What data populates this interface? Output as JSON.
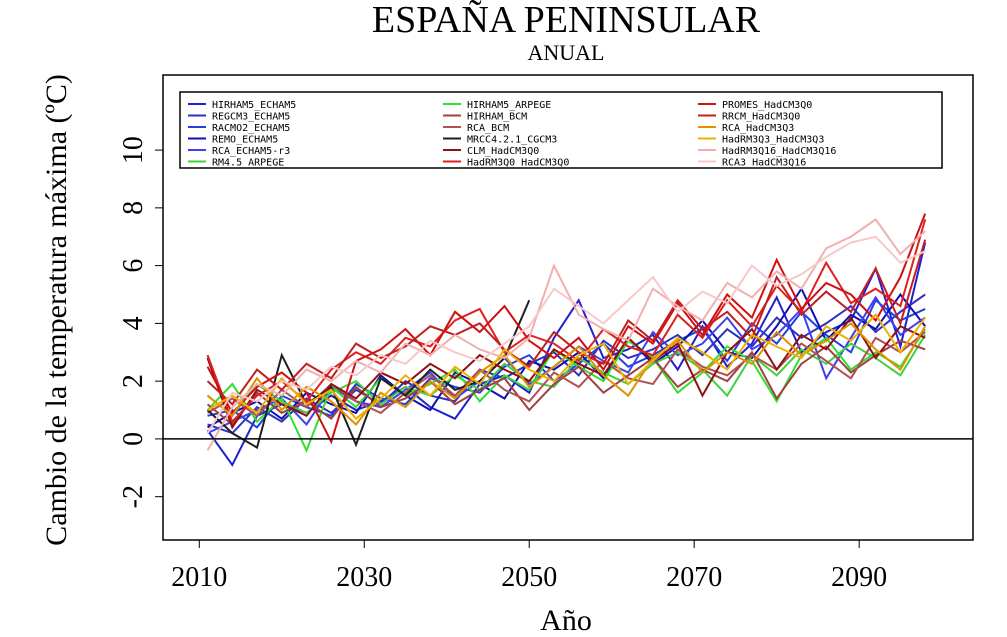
{
  "chart_data": {
    "type": "line",
    "title": "ESPAÑA PENINSULAR",
    "subtitle": "ANUAL",
    "x_label": "Año",
    "y_label": "Cambio de la temperatura máxima (ºC)",
    "xlim": [
      2005.6,
      2103.8
    ],
    "xticks": [
      2010,
      2030,
      2050,
      2070,
      2090
    ],
    "ylim": [
      -3.5,
      12.6
    ],
    "yticks": [
      -2,
      0,
      2,
      4,
      6,
      8,
      10
    ],
    "hline": 0,
    "legend": "top",
    "x": [
      2011,
      2014,
      2017,
      2020,
      2023,
      2026,
      2029,
      2032,
      2035,
      2038,
      2041,
      2044,
      2047,
      2050,
      2053,
      2056,
      2059,
      2062,
      2065,
      2068,
      2071,
      2074,
      2077,
      2080,
      2083,
      2086,
      2089,
      2092,
      2095,
      2098
    ],
    "series": [
      {
        "name": "HIRHAM5_ECHAM5",
        "color": "#2020d0",
        "values": [
          0.3,
          -0.9,
          0.8,
          1.2,
          0.9,
          1.5,
          1.0,
          1.3,
          1.8,
          1.1,
          0.7,
          1.9,
          2.2,
          1.6,
          3.5,
          4.8,
          2.8,
          3.1,
          3.6,
          2.4,
          3.9,
          2.5,
          3.3,
          4.9,
          3.0,
          3.7,
          4.1,
          5.9,
          3.2,
          6.8
        ]
      },
      {
        "name": "REGCM3_ECHAM5",
        "color": "#3030c0",
        "values": [
          0.5,
          0.2,
          1.1,
          0.6,
          1.4,
          0.9,
          1.7,
          1.2,
          2.0,
          1.5,
          1.3,
          2.4,
          2.1,
          2.6,
          3.0,
          2.2,
          3.4,
          2.8,
          3.1,
          3.6,
          2.9,
          3.8,
          3.2,
          4.2,
          3.5,
          4.0,
          4.6,
          3.7,
          4.4,
          5.0
        ]
      },
      {
        "name": "RACMO2_ECHAM5",
        "color": "#2040e0",
        "values": [
          0.8,
          1.0,
          0.4,
          1.5,
          1.1,
          0.8,
          1.9,
          1.4,
          1.2,
          2.1,
          1.8,
          1.6,
          2.5,
          2.9,
          2.0,
          2.6,
          3.3,
          2.5,
          2.9,
          3.4,
          3.8,
          2.7,
          4.0,
          3.3,
          4.4,
          3.6,
          3.0,
          4.8,
          4.1,
          4.5
        ]
      },
      {
        "name": "REMO_ECHAM5",
        "color": "#1010b0",
        "values": [
          0.4,
          0.9,
          1.3,
          0.7,
          1.6,
          1.2,
          0.9,
          2.2,
          1.5,
          1.0,
          2.3,
          1.9,
          1.4,
          2.7,
          2.4,
          3.0,
          2.1,
          3.5,
          2.6,
          3.2,
          4.1,
          3.0,
          2.8,
          3.9,
          5.2,
          3.4,
          4.3,
          3.8,
          5.0,
          3.9
        ]
      },
      {
        "name": "RCA_ECHAM5-r3",
        "color": "#4040f0",
        "values": [
          0.2,
          0.6,
          1.0,
          1.4,
          0.5,
          1.8,
          1.3,
          1.1,
          1.7,
          2.3,
          1.4,
          2.0,
          2.8,
          1.9,
          2.5,
          3.2,
          2.7,
          2.3,
          3.7,
          2.9,
          3.3,
          4.2,
          3.1,
          3.6,
          4.5,
          2.1,
          3.5,
          4.9,
          3.6,
          4.2
        ]
      },
      {
        "name": "RM4.5_ARPEGE",
        "color": "#40d040",
        "values": [
          1.5,
          0.8,
          1.9,
          1.3,
          0.9,
          1.6,
          2.0,
          1.2,
          1.8,
          1.5,
          2.2,
          1.7,
          2.6,
          2.0,
          1.8,
          2.8,
          2.3,
          1.9,
          2.6,
          3.0,
          2.4,
          1.5,
          2.9,
          2.2,
          3.1,
          2.6,
          3.3,
          2.8,
          2.2,
          3.6
        ]
      },
      {
        "name": "HIRHAM5_ARPEGE",
        "color": "#30e030",
        "values": [
          1.0,
          1.9,
          0.6,
          1.4,
          -0.4,
          1.8,
          1.1,
          2.1,
          1.5,
          1.9,
          2.4,
          1.3,
          2.2,
          1.7,
          3.1,
          2.5,
          2.0,
          3.4,
          2.8,
          1.6,
          2.3,
          3.2,
          2.7,
          1.3,
          2.9,
          3.5,
          2.4,
          3.0,
          2.5,
          3.8
        ]
      },
      {
        "name": "HIRHAM_BCM",
        "color": "#a04040",
        "values": [
          1.2,
          0.5,
          1.6,
          0.9,
          1.3,
          0.7,
          1.8,
          1.1,
          1.4,
          2.0,
          1.2,
          1.7,
          2.1,
          1.0,
          1.9,
          2.5,
          1.6,
          2.2,
          2.8,
          1.8,
          2.4,
          2.0,
          3.0,
          1.4,
          2.6,
          3.2,
          2.3,
          2.9,
          3.4,
          3.1
        ]
      },
      {
        "name": "RCA_BCM",
        "color": "#b05050",
        "values": [
          0.9,
          1.4,
          0.8,
          1.7,
          1.1,
          1.9,
          1.3,
          0.9,
          1.6,
          2.2,
          1.5,
          2.4,
          1.7,
          1.3,
          2.3,
          1.8,
          2.7,
          2.1,
          1.9,
          3.1,
          2.5,
          2.2,
          2.9,
          2.4,
          3.3,
          2.7,
          2.1,
          3.5,
          3.0,
          3.7
        ]
      },
      {
        "name": "MRCC4.2.1_CGCM3",
        "color": "#202020",
        "values": [
          1.0,
          0.2,
          -0.3,
          2.9,
          1.2,
          1.8,
          -0.2,
          2.1,
          1.5,
          2.4,
          1.7,
          2.0,
          2.8,
          4.8,
          null,
          null,
          null,
          null,
          null,
          null,
          null,
          null,
          null,
          null,
          null,
          null,
          null,
          null,
          null,
          null
        ]
      },
      {
        "name": "CLM_HadCM3Q0",
        "color": "#901010",
        "values": [
          2.8,
          0.4,
          1.7,
          1.2,
          0.8,
          1.9,
          1.4,
          2.3,
          1.9,
          2.6,
          2.1,
          2.9,
          2.4,
          2.0,
          3.1,
          2.6,
          2.2,
          3.5,
          2.7,
          3.3,
          1.5,
          3.0,
          3.8,
          2.4,
          3.6,
          3.1,
          4.2,
          2.8,
          3.9,
          3.5
        ]
      },
      {
        "name": "HadRM3Q0_HadCM3Q0",
        "color": "#e02020",
        "values": [
          2.9,
          0.6,
          1.5,
          2.0,
          1.3,
          2.4,
          3.0,
          2.6,
          3.5,
          3.2,
          4.1,
          4.5,
          3.0,
          3.6,
          3.3,
          2.7,
          3.8,
          3.2,
          2.9,
          4.3,
          3.5,
          4.8,
          3.9,
          5.3,
          4.4,
          6.1,
          4.7,
          5.2,
          4.6,
          7.6
        ]
      },
      {
        "name": "PROMES_HadCM3Q0",
        "color": "#d01010",
        "values": [
          2.5,
          0.9,
          1.8,
          2.3,
          1.6,
          -0.1,
          2.7,
          3.1,
          3.8,
          2.9,
          4.4,
          3.7,
          4.6,
          3.4,
          2.8,
          3.5,
          2.4,
          3.9,
          3.3,
          4.7,
          3.6,
          5.0,
          4.2,
          6.2,
          4.5,
          5.4,
          5.0,
          4.1,
          5.6,
          7.8
        ]
      },
      {
        "name": "RRCM_HadCM3Q0",
        "color": "#c02020",
        "values": [
          2.0,
          1.2,
          2.4,
          1.7,
          2.6,
          2.1,
          3.3,
          2.8,
          3.2,
          3.9,
          3.6,
          4.0,
          3.1,
          2.5,
          3.7,
          3.0,
          2.6,
          4.1,
          3.4,
          4.8,
          3.8,
          4.4,
          3.5,
          5.6,
          4.3,
          5.1,
          4.4,
          5.9,
          4.0,
          6.9
        ]
      },
      {
        "name": "RCA_HadCM3Q3",
        "color": "#e09000",
        "values": [
          1.5,
          0.8,
          2.1,
          1.0,
          1.8,
          1.3,
          0.5,
          1.6,
          1.1,
          2.0,
          1.4,
          2.3,
          2.9,
          1.8,
          2.5,
          3.2,
          2.2,
          1.5,
          2.8,
          3.4,
          2.3,
          3.0,
          2.6,
          3.7,
          2.9,
          3.4,
          4.0,
          3.1,
          2.4,
          3.9
        ]
      },
      {
        "name": "HadRM3Q3_HadCM3Q3",
        "color": "#f0b000",
        "values": [
          1.0,
          1.5,
          0.9,
          2.1,
          1.2,
          1.7,
          0.7,
          1.4,
          2.2,
          1.5,
          2.5,
          1.9,
          3.1,
          2.4,
          2.0,
          2.9,
          3.3,
          1.9,
          2.7,
          3.5,
          3.0,
          2.4,
          3.6,
          3.2,
          2.8,
          3.9,
          3.4,
          4.3,
          3.0,
          4.2
        ]
      },
      {
        "name": "HadRM3Q16_HadCM3Q16",
        "color": "#f0b0b0",
        "values": [
          -0.4,
          1.1,
          1.9,
          1.5,
          2.4,
          2.0,
          2.7,
          2.3,
          3.3,
          2.9,
          3.6,
          3.1,
          2.8,
          3.5,
          6.0,
          4.3,
          3.8,
          3.4,
          5.2,
          4.6,
          4.1,
          5.4,
          4.9,
          5.8,
          5.2,
          6.6,
          7.0,
          7.6,
          6.4,
          7.2
        ]
      },
      {
        "name": "RCA3_HadCM3Q16",
        "color": "#f8c8c8",
        "values": [
          0.2,
          1.6,
          1.3,
          2.0,
          1.7,
          2.5,
          2.2,
          2.9,
          2.6,
          3.4,
          3.0,
          2.7,
          3.3,
          3.9,
          5.2,
          4.6,
          4.0,
          4.8,
          5.6,
          4.4,
          5.1,
          4.7,
          6.0,
          5.3,
          5.7,
          6.3,
          6.8,
          7.0,
          6.1,
          6.5
        ]
      }
    ]
  }
}
